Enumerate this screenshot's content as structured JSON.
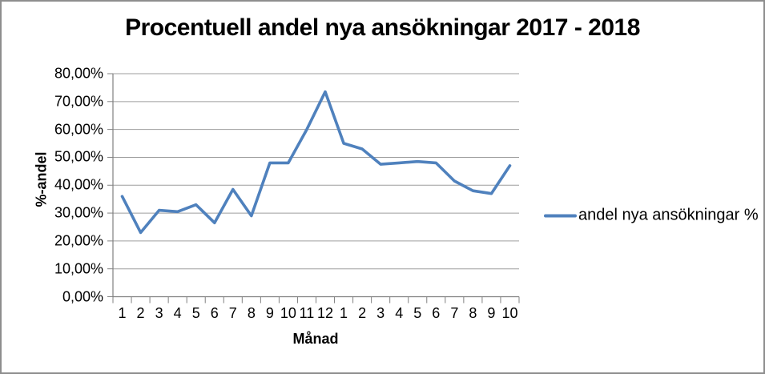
{
  "chart": {
    "title": "Procentuell andel nya ansökningar 2017 - 2018",
    "y_axis_title": "%-andel",
    "x_axis_title": "Månad",
    "legend_label": "andel nya ansökningar %"
  },
  "colors": {
    "line": "#4F81BD",
    "gridline": "#9d9d9d",
    "axis": "#808080",
    "text": "#000000",
    "border": "#8e8e8e"
  },
  "chart_data": {
    "type": "line",
    "title": "Procentuell andel nya ansökningar 2017 - 2018",
    "xlabel": "Månad",
    "ylabel": "%-andel",
    "legend_position": "right",
    "grid": true,
    "ylim": [
      0,
      80
    ],
    "categories": [
      "1",
      "2",
      "3",
      "4",
      "5",
      "6",
      "7",
      "8",
      "9",
      "10",
      "11",
      "12",
      "1",
      "2",
      "3",
      "4",
      "5",
      "6",
      "7",
      "8",
      "9",
      "10"
    ],
    "series": [
      {
        "name": "andel nya ansökningar %",
        "values": [
          36,
          23,
          31,
          30.5,
          33,
          26.5,
          38.5,
          29,
          48,
          48,
          60,
          73.5,
          55,
          53,
          47.5,
          48,
          48.5,
          48,
          41.5,
          38,
          37,
          47
        ]
      }
    ],
    "y_ticks": [
      {
        "value": 0,
        "label": "0,00%"
      },
      {
        "value": 10,
        "label": "10,00%"
      },
      {
        "value": 20,
        "label": "20,00%"
      },
      {
        "value": 30,
        "label": "30,00%"
      },
      {
        "value": 40,
        "label": "40,00%"
      },
      {
        "value": 50,
        "label": "50,00%"
      },
      {
        "value": 60,
        "label": "60,00%"
      },
      {
        "value": 70,
        "label": "70,00%"
      },
      {
        "value": 80,
        "label": "80,00%"
      }
    ]
  }
}
